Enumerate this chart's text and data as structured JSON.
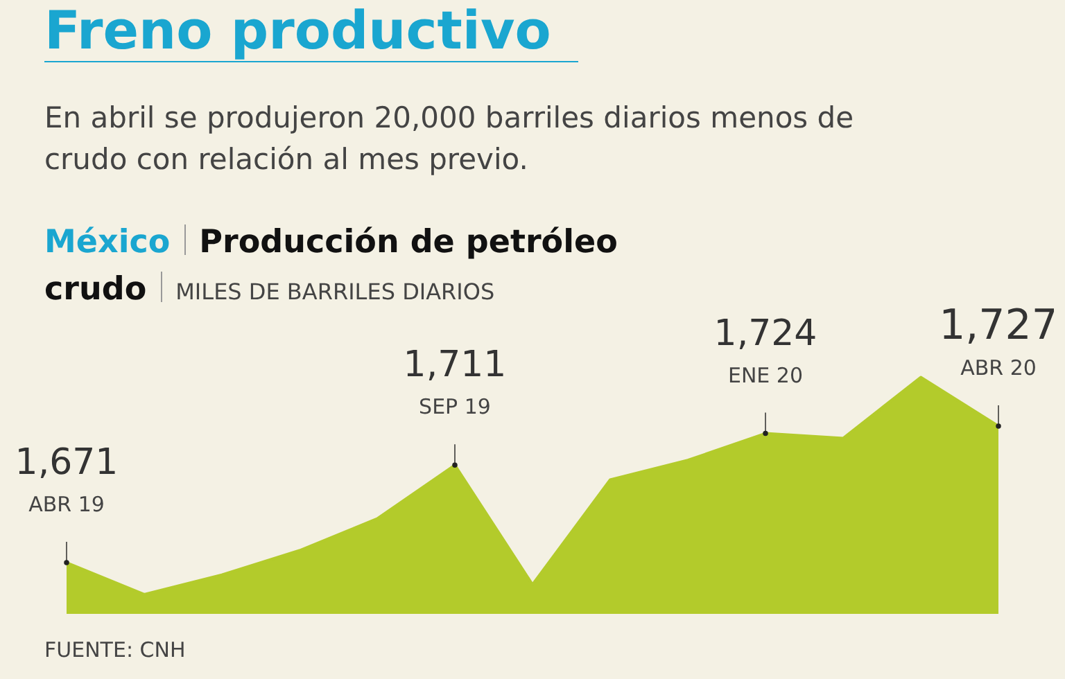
{
  "chart_data": {
    "type": "area",
    "title": "Freno productivo",
    "subtitle": "En abril se produjeron 20,000 barriles diarios menos de crudo con relación al mes previo.",
    "ylabel": "MILES DE BARRILES DIARIOS",
    "categories": [
      null,
      null,
      null,
      null,
      null,
      null,
      null,
      null,
      null,
      null,
      null,
      null,
      null
    ],
    "values": [
      1671,
      1658,
      1666,
      1676,
      1689,
      1711,
      1662,
      1705,
      1713,
      1724,
      1722,
      1747,
      1727
    ],
    "value_labels": [
      "1,671",
      null,
      null,
      null,
      null,
      "1,711",
      null,
      null,
      null,
      "1,724",
      null,
      null,
      "1,727"
    ],
    "color": "#b3cb2b",
    "tick_labels": false,
    "annotations": [
      "México",
      "Producción de petróleo crudo",
      "FUENTE: CNH",
      "ABR 19",
      "SEP 19",
      "ENE 20",
      "ABR 20"
    ]
  }
}
